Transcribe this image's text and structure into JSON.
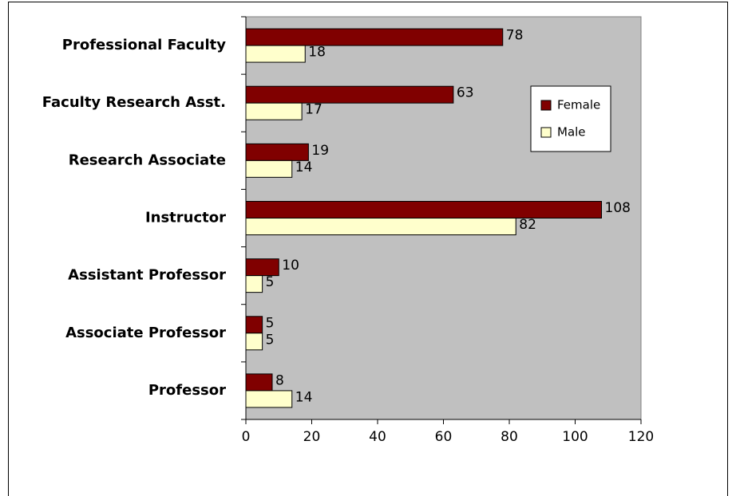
{
  "chart_data": {
    "type": "bar",
    "orientation": "horizontal",
    "categories": [
      "Professional Faculty",
      "Faculty Research Asst.",
      "Research Associate",
      "Instructor",
      "Assistant Professor",
      "Associate Professor",
      "Professor"
    ],
    "series": [
      {
        "name": "Female",
        "color": "#800000",
        "values": [
          78,
          63,
          19,
          108,
          10,
          5,
          8
        ]
      },
      {
        "name": "Male",
        "color": "#ffffcc",
        "values": [
          18,
          17,
          14,
          82,
          5,
          5,
          14
        ]
      }
    ],
    "xlim": [
      0,
      120
    ],
    "xticks": [
      0,
      20,
      40,
      60,
      80,
      100,
      120
    ],
    "grid": false,
    "legend": "right",
    "background": "#c0c0c0"
  }
}
